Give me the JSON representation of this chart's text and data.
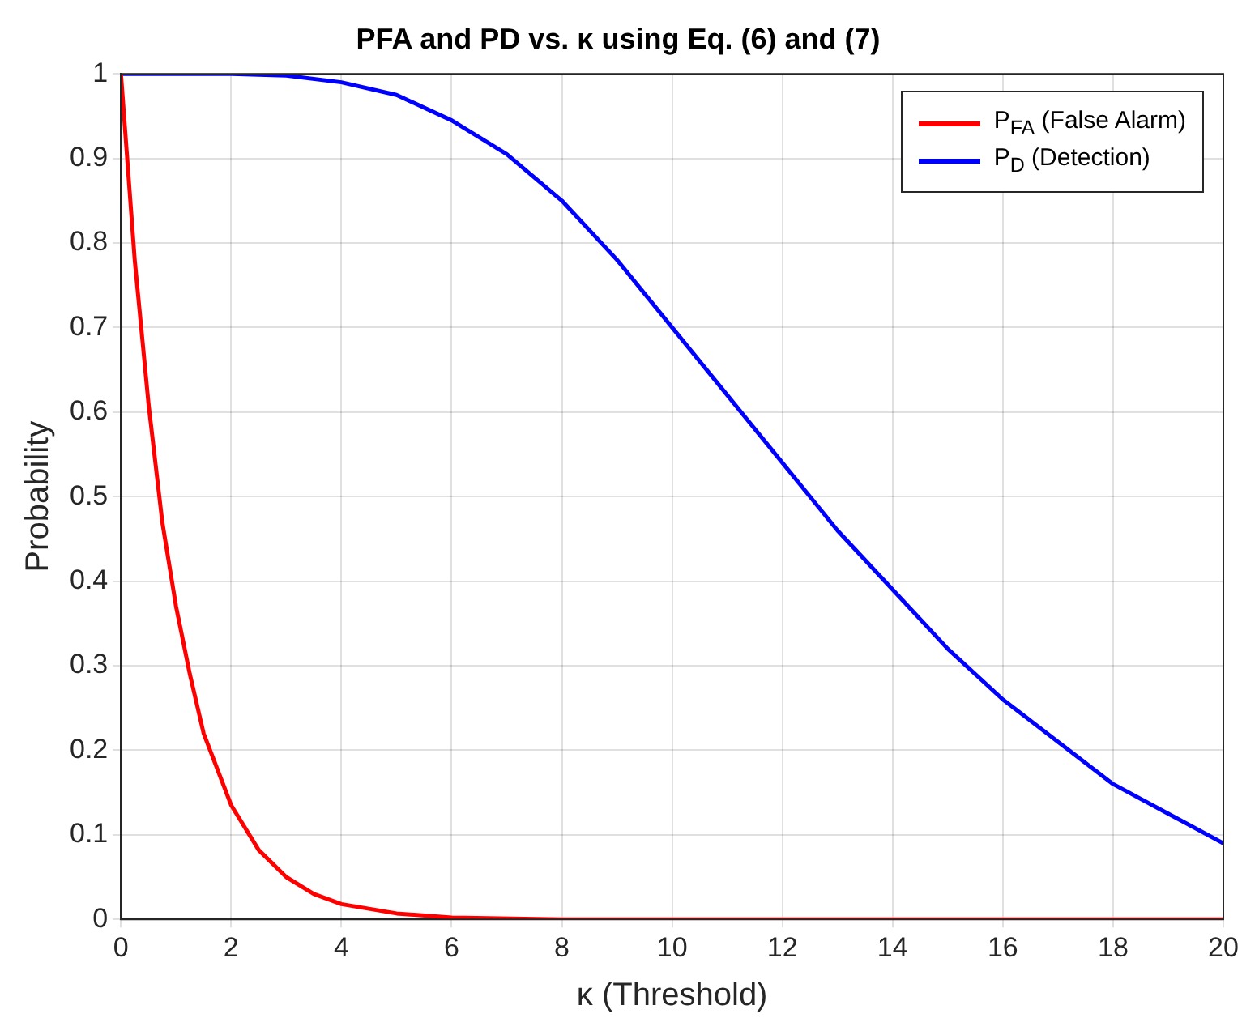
{
  "chart_data": {
    "type": "line",
    "title": "PFA and PD vs. κ using Eq. (6) and (7)",
    "xlabel": "κ (Threshold)",
    "ylabel": "Probability",
    "xlim": [
      0,
      20
    ],
    "xticks": [
      0,
      2,
      4,
      6,
      8,
      10,
      12,
      14,
      16,
      18,
      20
    ],
    "ylim": [
      0,
      1
    ],
    "yticks": [
      0,
      0.1,
      0.2,
      0.3,
      0.4,
      0.5,
      0.6,
      0.7,
      0.8,
      0.9,
      1
    ],
    "grid": true,
    "legend": "top right",
    "marker": "none",
    "line_style": "solid",
    "series": [
      {
        "name": "P$_{FA}$ (False Alarm)",
        "color": "#ff0000",
        "x": [
          0,
          0.25,
          0.5,
          0.75,
          1,
          1.25,
          1.5,
          2,
          2.5,
          3,
          3.5,
          4,
          5,
          6,
          8,
          10,
          12,
          14,
          16,
          18,
          20
        ],
        "values": [
          1,
          0.78,
          0.61,
          0.47,
          0.37,
          0.29,
          0.22,
          0.135,
          0.082,
          0.05,
          0.03,
          0.018,
          0.007,
          0.002,
          0,
          0,
          0,
          0,
          0,
          0,
          0
        ]
      },
      {
        "name": "P$_{D}$ (Detection)",
        "color": "#0000ff",
        "x": [
          0,
          1,
          2,
          3,
          4,
          5,
          6,
          7,
          8,
          9,
          10,
          11,
          12,
          13,
          14,
          15,
          16,
          17,
          18,
          19,
          20
        ],
        "values": [
          1,
          1,
          1,
          0.998,
          0.99,
          0.975,
          0.945,
          0.905,
          0.85,
          0.78,
          0.7,
          0.62,
          0.54,
          0.46,
          0.39,
          0.32,
          0.26,
          0.21,
          0.16,
          0.125,
          0.09
        ]
      }
    ]
  }
}
